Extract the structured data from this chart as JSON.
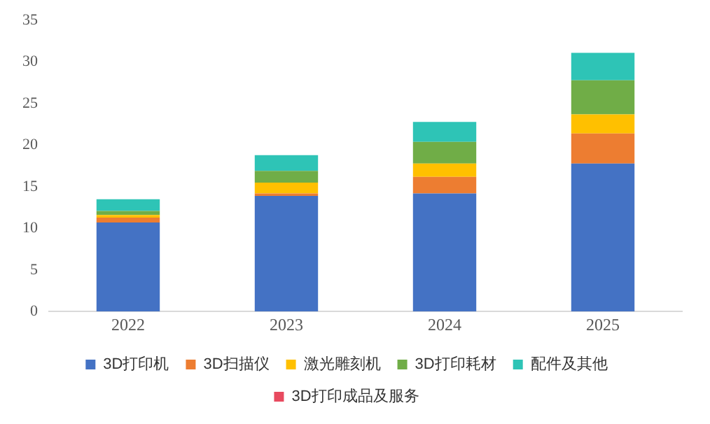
{
  "chart_data": {
    "type": "bar",
    "stacked": true,
    "categories": [
      "2022",
      "2023",
      "2024",
      "2025"
    ],
    "series": [
      {
        "name": "3D打印机",
        "color": "#4472c4",
        "values": [
          10.7,
          13.9,
          14.2,
          17.8
        ]
      },
      {
        "name": "3D扫描仪",
        "color": "#ed7d31",
        "values": [
          0.6,
          0.3,
          2.0,
          3.6
        ]
      },
      {
        "name": "激光雕刻机",
        "color": "#ffc000",
        "values": [
          0.3,
          1.3,
          1.6,
          2.3
        ]
      },
      {
        "name": "3D打印耗材",
        "color": "#70ad47",
        "values": [
          0.5,
          1.4,
          2.6,
          4.1
        ]
      },
      {
        "name": "配件及其他",
        "color": "#2ec4b6",
        "values": [
          1.4,
          1.9,
          2.4,
          3.3
        ]
      },
      {
        "name": "3D打印成品及服务",
        "color": "#e84a5f",
        "values": [
          0,
          0,
          0,
          0
        ]
      }
    ],
    "ylim": [
      0,
      35
    ],
    "yticks": [
      0,
      5,
      10,
      15,
      20,
      25,
      30,
      35
    ],
    "grid": false,
    "legend": "bottom"
  }
}
